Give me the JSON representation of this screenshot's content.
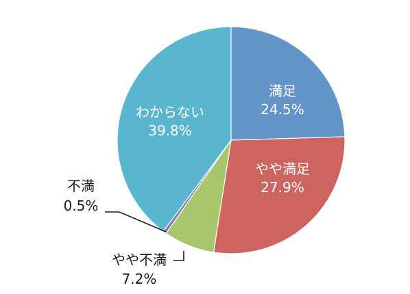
{
  "chart_data": {
    "type": "pie",
    "title": "",
    "slices": [
      {
        "label": "満足",
        "value": 24.5,
        "value_label": "24.5%",
        "color": "#6495c9"
      },
      {
        "label": "やや満足",
        "value": 27.9,
        "value_label": "27.9%",
        "color": "#cd6460"
      },
      {
        "label": "やや不満",
        "value": 7.2,
        "value_label": "7.2%",
        "color": "#a8c66c"
      },
      {
        "label": "不満",
        "value": 0.5,
        "value_label": "0.5%",
        "color": "#8c78b4"
      },
      {
        "label": "わからない",
        "value": 39.8,
        "value_label": "39.8%",
        "color": "#5ab6cf"
      }
    ],
    "start_angle": "12 o'clock",
    "direction": "clockwise",
    "legend": "none"
  }
}
